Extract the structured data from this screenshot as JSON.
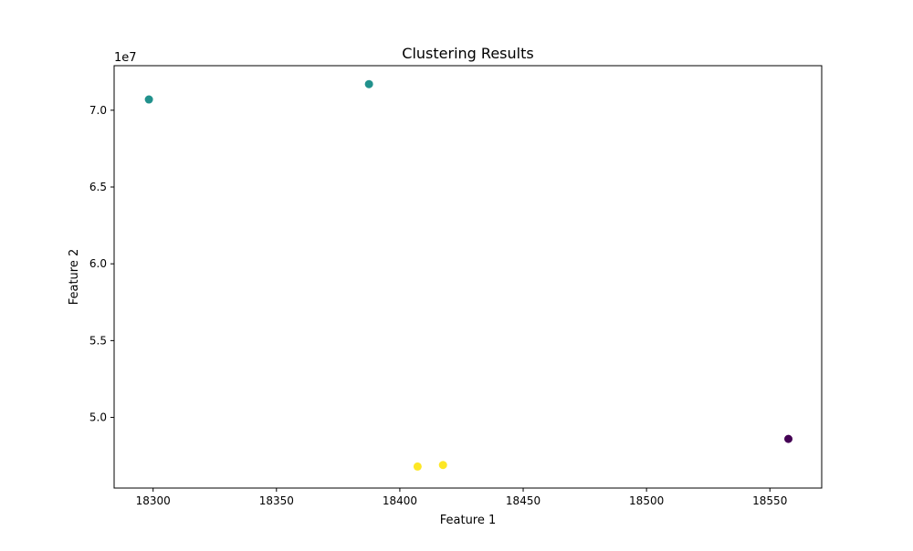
{
  "chart_data": {
    "type": "scatter",
    "title": "Clustering Results",
    "xlabel": "Feature 1",
    "ylabel": "Feature 2",
    "y_offset_label": "1e7",
    "xlim": [
      18284.2,
      18571.0
    ],
    "ylim": [
      4.54,
      7.29
    ],
    "x_ticks": [
      18300,
      18350,
      18400,
      18450,
      18500,
      18550
    ],
    "x_tick_labels": [
      "18300",
      "18350",
      "18400",
      "18450",
      "18500",
      "18550"
    ],
    "y_ticks": [
      5.0,
      5.5,
      6.0,
      6.5,
      7.0
    ],
    "y_tick_labels": [
      "5.0",
      "5.5",
      "6.0",
      "6.5",
      "7.0"
    ],
    "y_scale_note": "values shown in units of 1e7",
    "grid": false,
    "legend": "none",
    "colors": {
      "cluster_0": "#440154",
      "cluster_1": "#21918c",
      "cluster_2": "#fde725"
    },
    "points": [
      {
        "x": 18298.3,
        "y": 7.07,
        "cluster": 1
      },
      {
        "x": 18387.5,
        "y": 7.17,
        "cluster": 1
      },
      {
        "x": 18407.2,
        "y": 4.68,
        "cluster": 2
      },
      {
        "x": 18417.5,
        "y": 4.69,
        "cluster": 2
      },
      {
        "x": 18557.5,
        "y": 4.86,
        "cluster": 0
      }
    ]
  }
}
